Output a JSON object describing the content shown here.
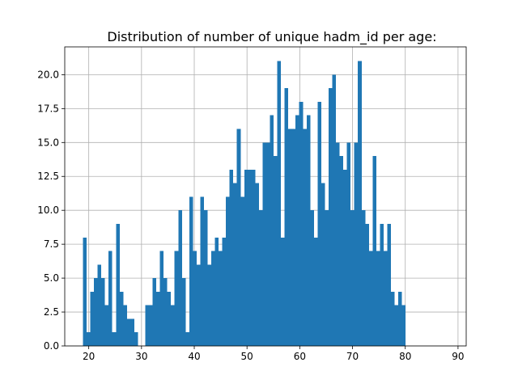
{
  "chart_data": {
    "type": "bar",
    "title": "Distribution of number of unique hadm_id per age:",
    "xlabel": "",
    "ylabel": "",
    "xlim": [
      15.45,
      91.55
    ],
    "ylim": [
      0,
      22.05
    ],
    "xticks": [
      20,
      30,
      40,
      50,
      60,
      70,
      80,
      90
    ],
    "yticks": [
      0.0,
      2.5,
      5.0,
      7.5,
      10.0,
      12.5,
      15.0,
      17.5,
      20.0
    ],
    "xtick_labels": [
      "20",
      "30",
      "40",
      "50",
      "60",
      "70",
      "80",
      "90"
    ],
    "ytick_labels": [
      "0.0",
      "2.5",
      "5.0",
      "7.5",
      "10.0",
      "12.5",
      "15.0",
      "17.5",
      "20.0"
    ],
    "grid": true,
    "bar_color": "#1f77b4",
    "bin_start": 18.9,
    "bin_width": 0.695,
    "values": [
      8,
      1,
      4,
      5,
      6,
      5,
      3,
      7,
      1,
      9,
      4,
      3,
      2,
      2,
      1,
      0,
      0,
      3,
      3,
      5,
      4,
      7,
      5,
      4,
      3,
      7,
      10,
      5,
      1,
      11,
      7,
      6,
      11,
      10,
      6,
      7,
      8,
      7,
      8,
      11,
      13,
      12,
      16,
      11,
      13,
      13,
      13,
      12,
      10,
      15,
      15,
      17,
      14,
      21,
      8,
      19,
      16,
      16,
      17,
      18,
      16,
      17,
      10,
      8,
      18,
      12,
      10,
      19,
      20,
      15,
      14,
      13,
      15,
      10,
      15,
      21,
      10,
      9,
      7,
      14,
      7,
      9,
      7,
      9,
      4,
      3,
      4,
      3,
      0,
      0
    ]
  }
}
